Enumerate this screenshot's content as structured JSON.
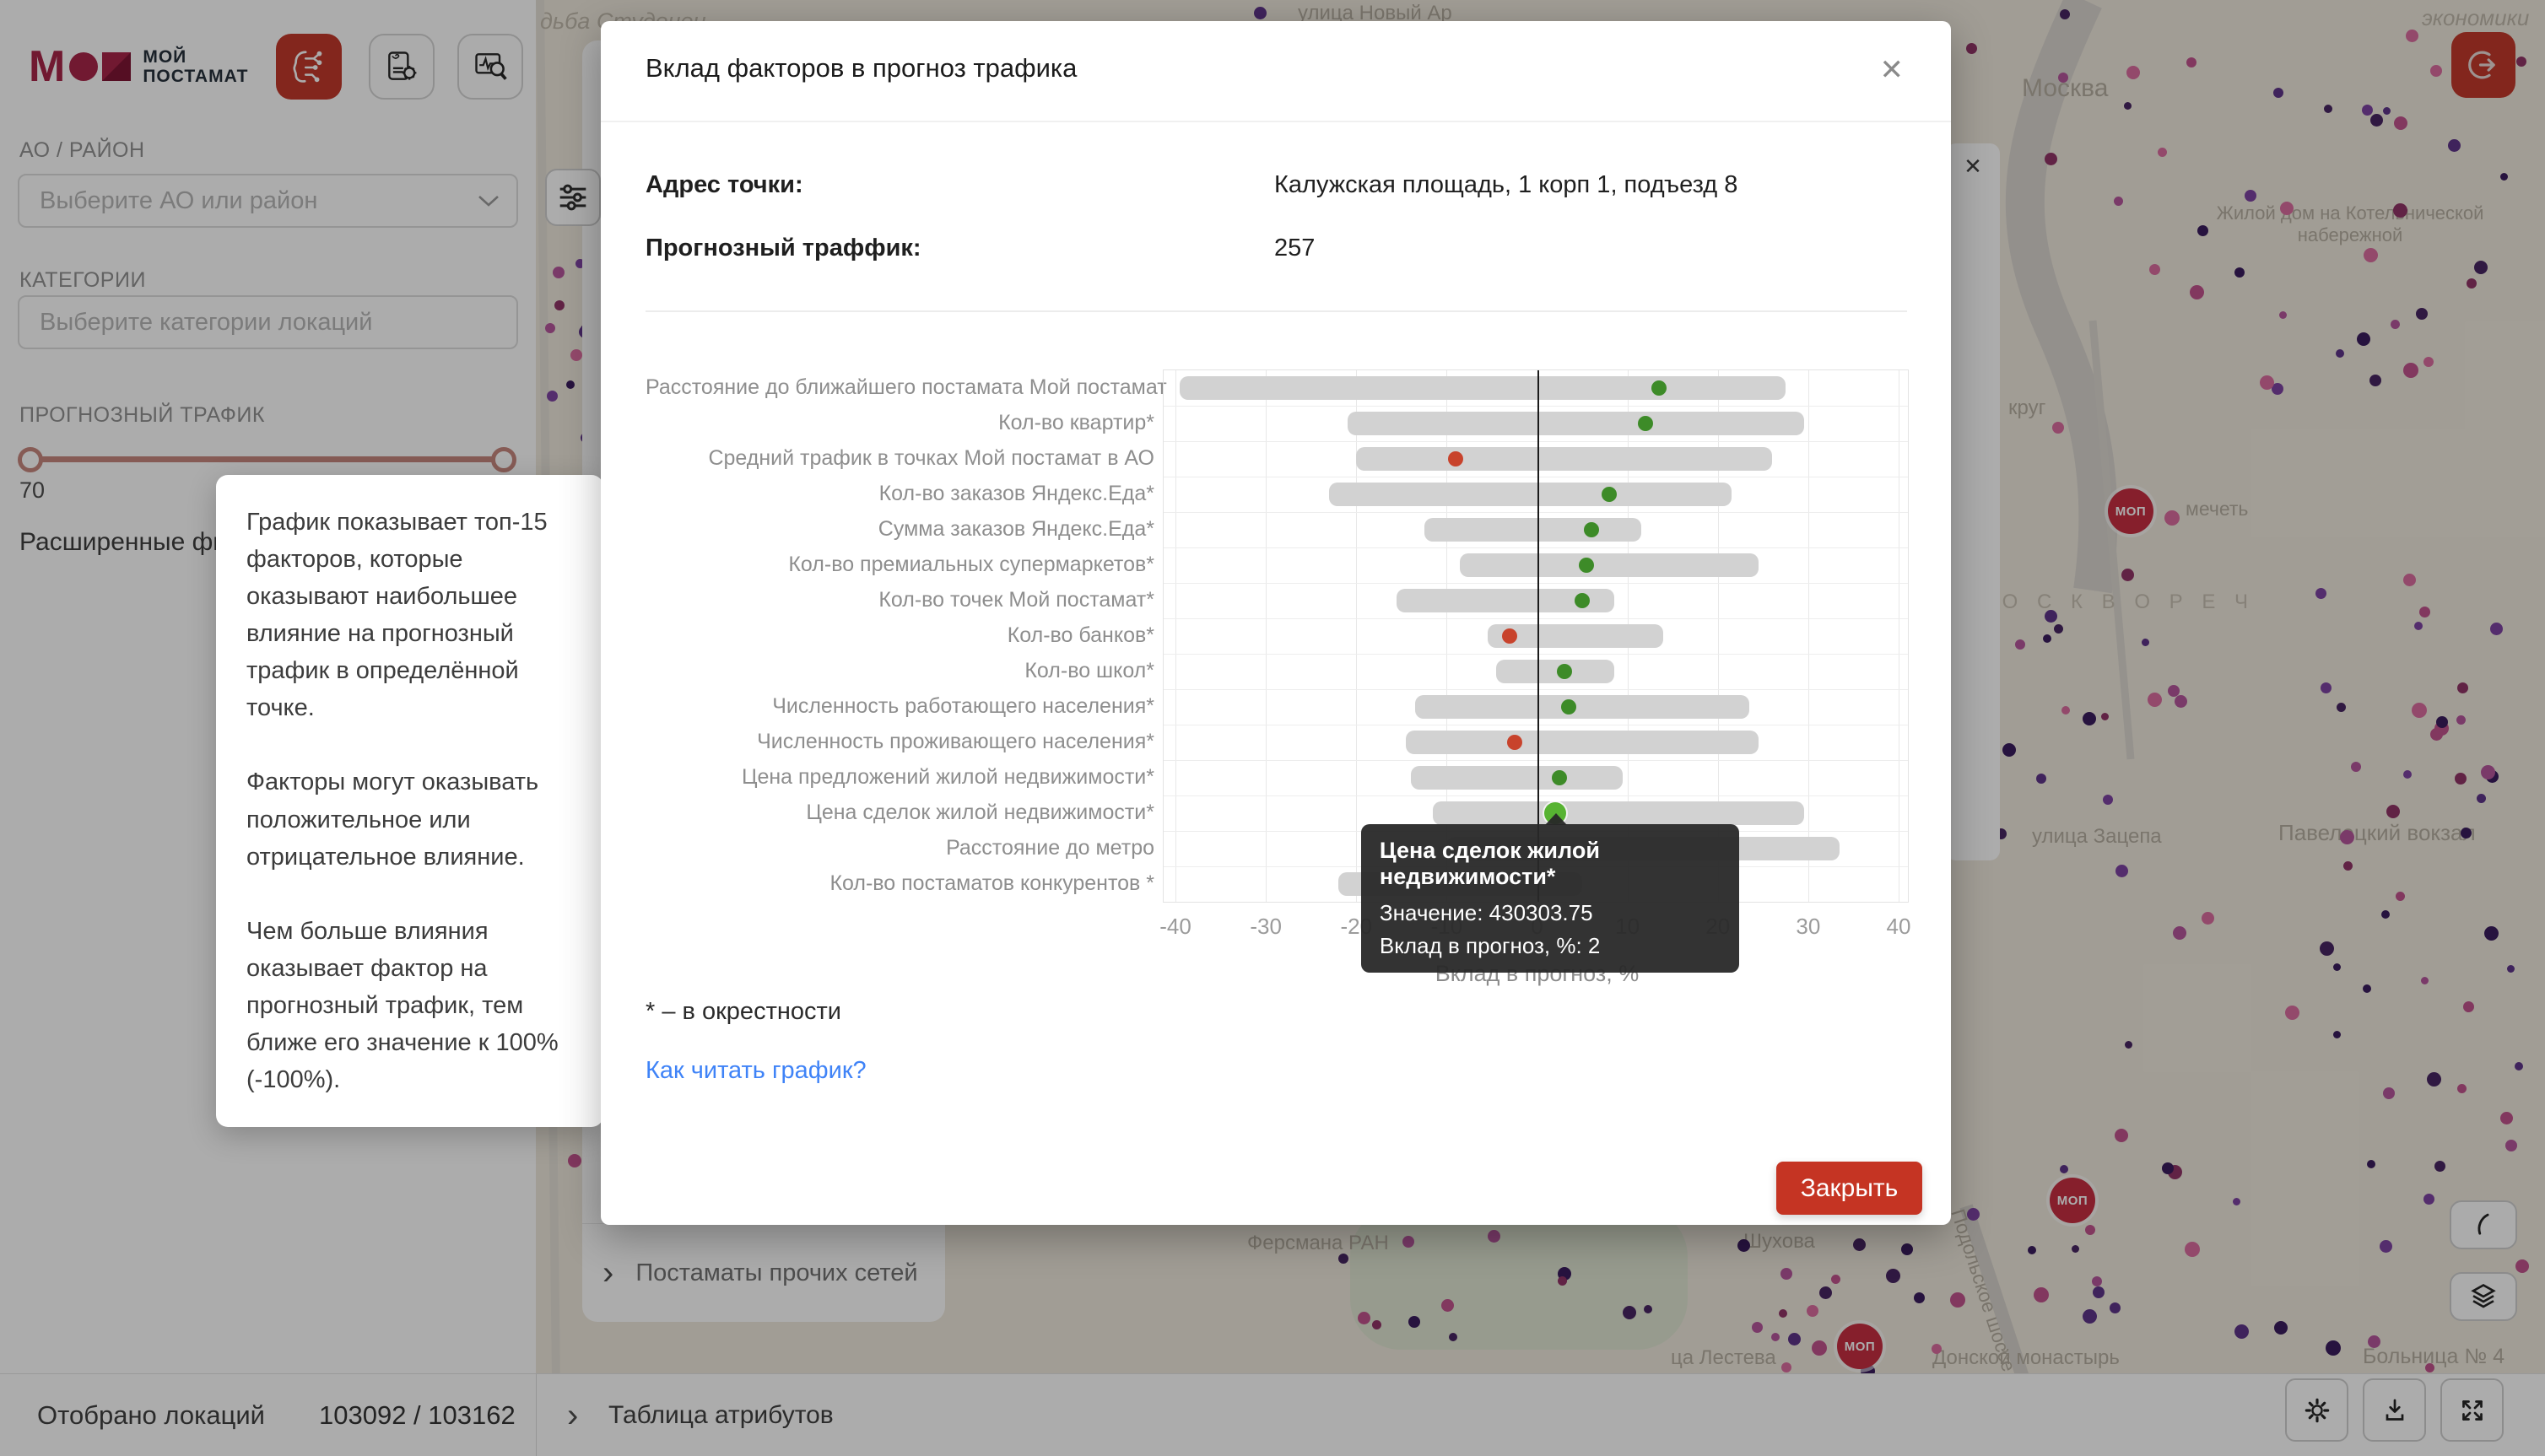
{
  "app": {
    "logo_line1": "МОЙ",
    "logo_line2": "ПОСТАМАТ"
  },
  "icons": {
    "close": "✕",
    "chevron_right": "›"
  },
  "sidebar": {
    "ao_label": "АО / РАЙОН",
    "ao_placeholder": "Выберите АО или район",
    "categories_label": "КАТЕГОРИИ",
    "categories_placeholder": "Выберите категории локаций",
    "traffic_label": "ПРОГНОЗНЫЙ ТРАФИК",
    "traffic_min_value": "70",
    "advanced_filters_label": "Расширенные фильтры"
  },
  "info_popup": {
    "paragraphs": [
      "График показывает топ-15 факторов, которые оказывают наибольшее влияние на прогнозный трафик в определённой точке.",
      "Факторы могут оказывать положительное или отрицательное влияние.",
      "Чем больше влияния оказывает фактор на прогнозный трафик, тем ближе его значение к 100% (-100%)."
    ]
  },
  "panel": {
    "other_networks_label": "Постаматы прочих сетей"
  },
  "bottom_bar": {
    "selected_label": "Отобрано локаций",
    "selected_count": "103092 / 103162",
    "attributes_table_label": "Таблица атрибутов"
  },
  "modal": {
    "title": "Вклад факторов в прогноз трафика",
    "address_label": "Адрес точки:",
    "address_value": "Калужская площадь, 1 корп 1, подъезд 8",
    "traffic_label": "Прогнозный траффик:",
    "traffic_value": "257",
    "footnote": "* – в окрестности",
    "how_to_link": "Как читать график?",
    "close_button_label": "Закрыть"
  },
  "chart_data": {
    "type": "bar",
    "orientation": "horizontal",
    "title": "Вклад факторов в прогноз трафика",
    "xlabel": "Вклад в прогноз, %",
    "xlim": [
      -40,
      40
    ],
    "xticks": [
      "-40",
      "-30",
      "-20",
      "-10",
      "0",
      "10",
      "20",
      "30",
      "40"
    ],
    "grid": true,
    "bar_color": "#d2d2d2",
    "positive_dot_color": "#3d8b28",
    "negative_dot_color": "#c8432c",
    "highlight_dot_color": "#57b332",
    "rows": [
      {
        "label": "Расстояние до ближайшего постамата Мой постамат",
        "range": [
          -39.5,
          27.5
        ],
        "dot": 13.5,
        "dot_color": "green",
        "highlighted": false
      },
      {
        "label": "Кол-во квартир*",
        "range": [
          -21,
          29.5
        ],
        "dot": 12,
        "dot_color": "green",
        "highlighted": false
      },
      {
        "label": "Средний трафик в точках Мой постамат в АО",
        "range": [
          -20,
          26
        ],
        "dot": -9,
        "dot_color": "red",
        "highlighted": false
      },
      {
        "label": "Кол-во заказов Яндекс.Еда*",
        "range": [
          -23,
          21.5
        ],
        "dot": 8,
        "dot_color": "green",
        "highlighted": false
      },
      {
        "label": "Сумма заказов Яндекс.Еда*",
        "range": [
          -12.5,
          11.5
        ],
        "dot": 6,
        "dot_color": "green",
        "highlighted": false
      },
      {
        "label": "Кол-во премиальных супермаркетов*",
        "range": [
          -8.5,
          24.5
        ],
        "dot": 5.5,
        "dot_color": "green",
        "highlighted": false
      },
      {
        "label": "Кол-во точек Мой постамат*",
        "range": [
          -15.5,
          8.5
        ],
        "dot": 5,
        "dot_color": "green",
        "highlighted": false
      },
      {
        "label": "Кол-во банков*",
        "range": [
          -5.5,
          14
        ],
        "dot": -3,
        "dot_color": "red",
        "highlighted": false
      },
      {
        "label": "Кол-во школ*",
        "range": [
          -4.5,
          8.5
        ],
        "dot": 3,
        "dot_color": "green",
        "highlighted": false
      },
      {
        "label": "Численность работающего населения*",
        "range": [
          -13.5,
          23.5
        ],
        "dot": 3.5,
        "dot_color": "green",
        "highlighted": false
      },
      {
        "label": "Численность проживающего населения*",
        "range": [
          -14.5,
          24.5
        ],
        "dot": -2.5,
        "dot_color": "red",
        "highlighted": false
      },
      {
        "label": "Цена предложений жилой недвижимости*",
        "range": [
          -14,
          9.5
        ],
        "dot": 2.5,
        "dot_color": "green",
        "highlighted": false
      },
      {
        "label": "Цена сделок жилой недвижимости*",
        "range": [
          -11.5,
          29.5
        ],
        "dot": 2,
        "dot_color": "green",
        "highlighted": true
      },
      {
        "label": "Расстояние до метро",
        "range": [
          -10,
          33.5
        ],
        "dot": null,
        "dot_color": null,
        "highlighted": false
      },
      {
        "label": "Кол-во постаматов конкурентов *",
        "range": [
          -22,
          5
        ],
        "dot": null,
        "dot_color": null,
        "highlighted": false
      }
    ],
    "tooltip": {
      "row_index": 12,
      "title": "Цена сделок жилой недвижимости*",
      "value_line": "Значение: 430303.75",
      "contribution_line": "Вклад в прогноз, %: 2"
    }
  },
  "map": {
    "pin_label": "МОП",
    "dot_palette": [
      "#5a2f86",
      "#7a3fa0",
      "#44215f",
      "#8e2f63",
      "#c04f8b",
      "#d9699d",
      "#b3539a",
      "#36175a"
    ],
    "labels": [
      "дьба Студенец",
      "улица Новый Ар",
      "Москва",
      "Жилой дом на Котельнической набережной",
      "экономики",
      "круг",
      "мечеть",
      "М О С К В О Р Е Ч",
      "улица Зацепа",
      "Павелецкий вокзал",
      "Ферсмана РАН",
      "Шухова",
      "Подольское шоссе",
      "ца Лестева",
      "Донской монастырь",
      "Больница № 4"
    ]
  }
}
